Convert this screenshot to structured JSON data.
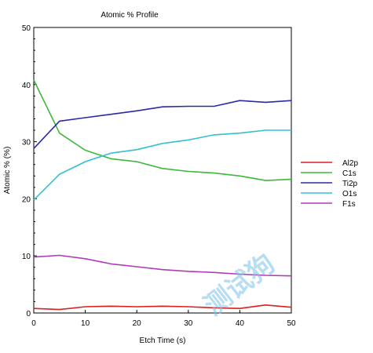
{
  "chart_data": {
    "type": "line",
    "title": "Atomic % Profile",
    "xlabel": "Etch Time (s)",
    "ylabel": "Atomic % (%)",
    "xlim": [
      0,
      50
    ],
    "ylim": [
      0,
      50
    ],
    "xticks": [
      0,
      10,
      20,
      30,
      40,
      50
    ],
    "yticks": [
      0,
      10,
      20,
      30,
      40,
      50
    ],
    "grid": false,
    "legend_position": "right",
    "series": [
      {
        "name": "Al2p",
        "color": "#dd1f1f",
        "x": [
          0,
          5,
          10,
          15,
          20,
          25,
          30,
          35,
          40,
          45,
          50
        ],
        "y": [
          0.8,
          0.6,
          1.1,
          1.2,
          1.1,
          1.2,
          1.1,
          0.9,
          0.8,
          1.4,
          1.0
        ]
      },
      {
        "name": "C1s",
        "color": "#3cb83c",
        "x": [
          0,
          5,
          10,
          15,
          20,
          25,
          30,
          35,
          40,
          45,
          50
        ],
        "y": [
          40.8,
          31.5,
          28.5,
          27.0,
          26.5,
          25.3,
          24.8,
          24.5,
          24.0,
          23.2,
          23.4
        ]
      },
      {
        "name": "Ti2p",
        "color": "#2a2aa8",
        "x": [
          0,
          5,
          10,
          15,
          20,
          25,
          30,
          35,
          40,
          45,
          50
        ],
        "y": [
          28.8,
          33.6,
          34.2,
          34.8,
          35.4,
          36.1,
          36.2,
          36.2,
          37.2,
          36.9,
          37.2
        ]
      },
      {
        "name": "O1s",
        "color": "#33c0d0",
        "x": [
          0,
          5,
          10,
          15,
          20,
          25,
          30,
          35,
          40,
          45,
          50
        ],
        "y": [
          19.8,
          24.3,
          26.5,
          28.0,
          28.6,
          29.7,
          30.3,
          31.2,
          31.5,
          32.0,
          32.0
        ]
      },
      {
        "name": "F1s",
        "color": "#b03ab8",
        "x": [
          0,
          5,
          10,
          15,
          20,
          25,
          30,
          35,
          40,
          45,
          50
        ],
        "y": [
          9.8,
          10.1,
          9.5,
          8.6,
          8.1,
          7.6,
          7.3,
          7.1,
          6.8,
          6.6,
          6.5
        ]
      }
    ]
  },
  "watermark": "测试狗"
}
